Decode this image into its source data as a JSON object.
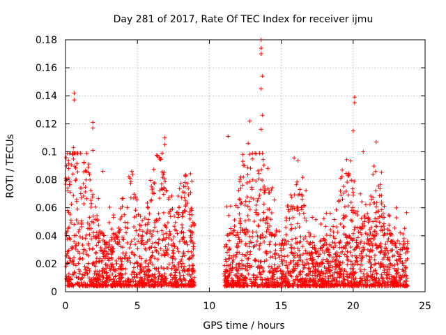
{
  "chart_data": {
    "type": "scatter",
    "title": "Day 281 of 2017, Rate Of TEC Index for receiver ijmu",
    "xlabel": "GPS time / hours",
    "ylabel": "ROTI / TECUs",
    "xlim": [
      0,
      25
    ],
    "ylim": [
      0,
      0.18
    ],
    "xticks": [
      "0",
      "5",
      "10",
      "15",
      "20",
      "25"
    ],
    "yticks": [
      "0",
      "0.02",
      "0.04",
      "0.06",
      "0.08",
      "0.1",
      "0.12",
      "0.14",
      "0.16",
      "0.18"
    ],
    "grid": true,
    "marker": "+",
    "color": "#ff0000",
    "data_gaps_hours": [
      [
        9.0,
        11.0
      ]
    ],
    "notable_points": [
      {
        "x": 0.6,
        "y": 0.142
      },
      {
        "x": 0.6,
        "y": 0.137
      },
      {
        "x": 0.55,
        "y": 0.103
      },
      {
        "x": 1.9,
        "y": 0.121
      },
      {
        "x": 1.9,
        "y": 0.117
      },
      {
        "x": 1.9,
        "y": 0.101
      },
      {
        "x": 2.6,
        "y": 0.086
      },
      {
        "x": 6.9,
        "y": 0.11
      },
      {
        "x": 6.9,
        "y": 0.105
      },
      {
        "x": 11.3,
        "y": 0.111
      },
      {
        "x": 12.8,
        "y": 0.122
      },
      {
        "x": 12.7,
        "y": 0.106
      },
      {
        "x": 13.6,
        "y": 0.18
      },
      {
        "x": 13.6,
        "y": 0.174
      },
      {
        "x": 13.6,
        "y": 0.17
      },
      {
        "x": 13.7,
        "y": 0.154
      },
      {
        "x": 13.6,
        "y": 0.145
      },
      {
        "x": 13.7,
        "y": 0.126
      },
      {
        "x": 13.6,
        "y": 0.116
      },
      {
        "x": 20.1,
        "y": 0.139
      },
      {
        "x": 20.1,
        "y": 0.135
      },
      {
        "x": 20.0,
        "y": 0.115
      },
      {
        "x": 21.6,
        "y": 0.107
      },
      {
        "x": 20.7,
        "y": 0.1
      }
    ]
  }
}
